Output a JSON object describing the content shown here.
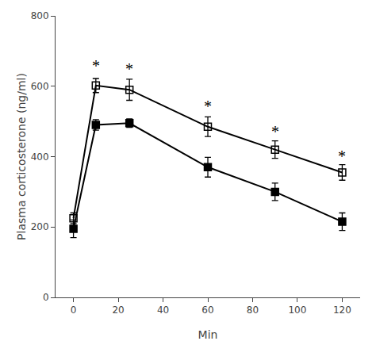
{
  "chart_data": {
    "type": "line",
    "xlabel": "Min",
    "ylabel": "Plasma corticosterone (ng/ml)",
    "x": [
      0,
      10,
      25,
      60,
      90,
      120
    ],
    "series": [
      {
        "color": "#000000",
        "marker": "square-open",
        "line_style": "solid",
        "values": [
          225,
          602,
          590,
          485,
          420,
          355
        ],
        "errors": [
          15,
          20,
          30,
          28,
          25,
          22
        ]
      },
      {
        "color": "#000000",
        "marker": "square",
        "line_style": "solid",
        "values": [
          195,
          490,
          495,
          370,
          300,
          215
        ],
        "errors": [
          25,
          15,
          12,
          28,
          25,
          25
        ]
      }
    ],
    "annotations": [
      {
        "text": "*",
        "x": 10,
        "y": 658
      },
      {
        "text": "*",
        "x": 25,
        "y": 648
      },
      {
        "text": "*",
        "x": 60,
        "y": 542
      },
      {
        "text": "*",
        "x": 90,
        "y": 472
      },
      {
        "text": "*",
        "x": 120,
        "y": 402
      }
    ],
    "xlim": [
      -8,
      128
    ],
    "xticks": [
      0,
      20,
      40,
      60,
      80,
      100,
      120
    ],
    "ylim": [
      0,
      800
    ],
    "yticks": [
      0,
      200,
      400,
      600,
      800
    ],
    "grid": false
  }
}
